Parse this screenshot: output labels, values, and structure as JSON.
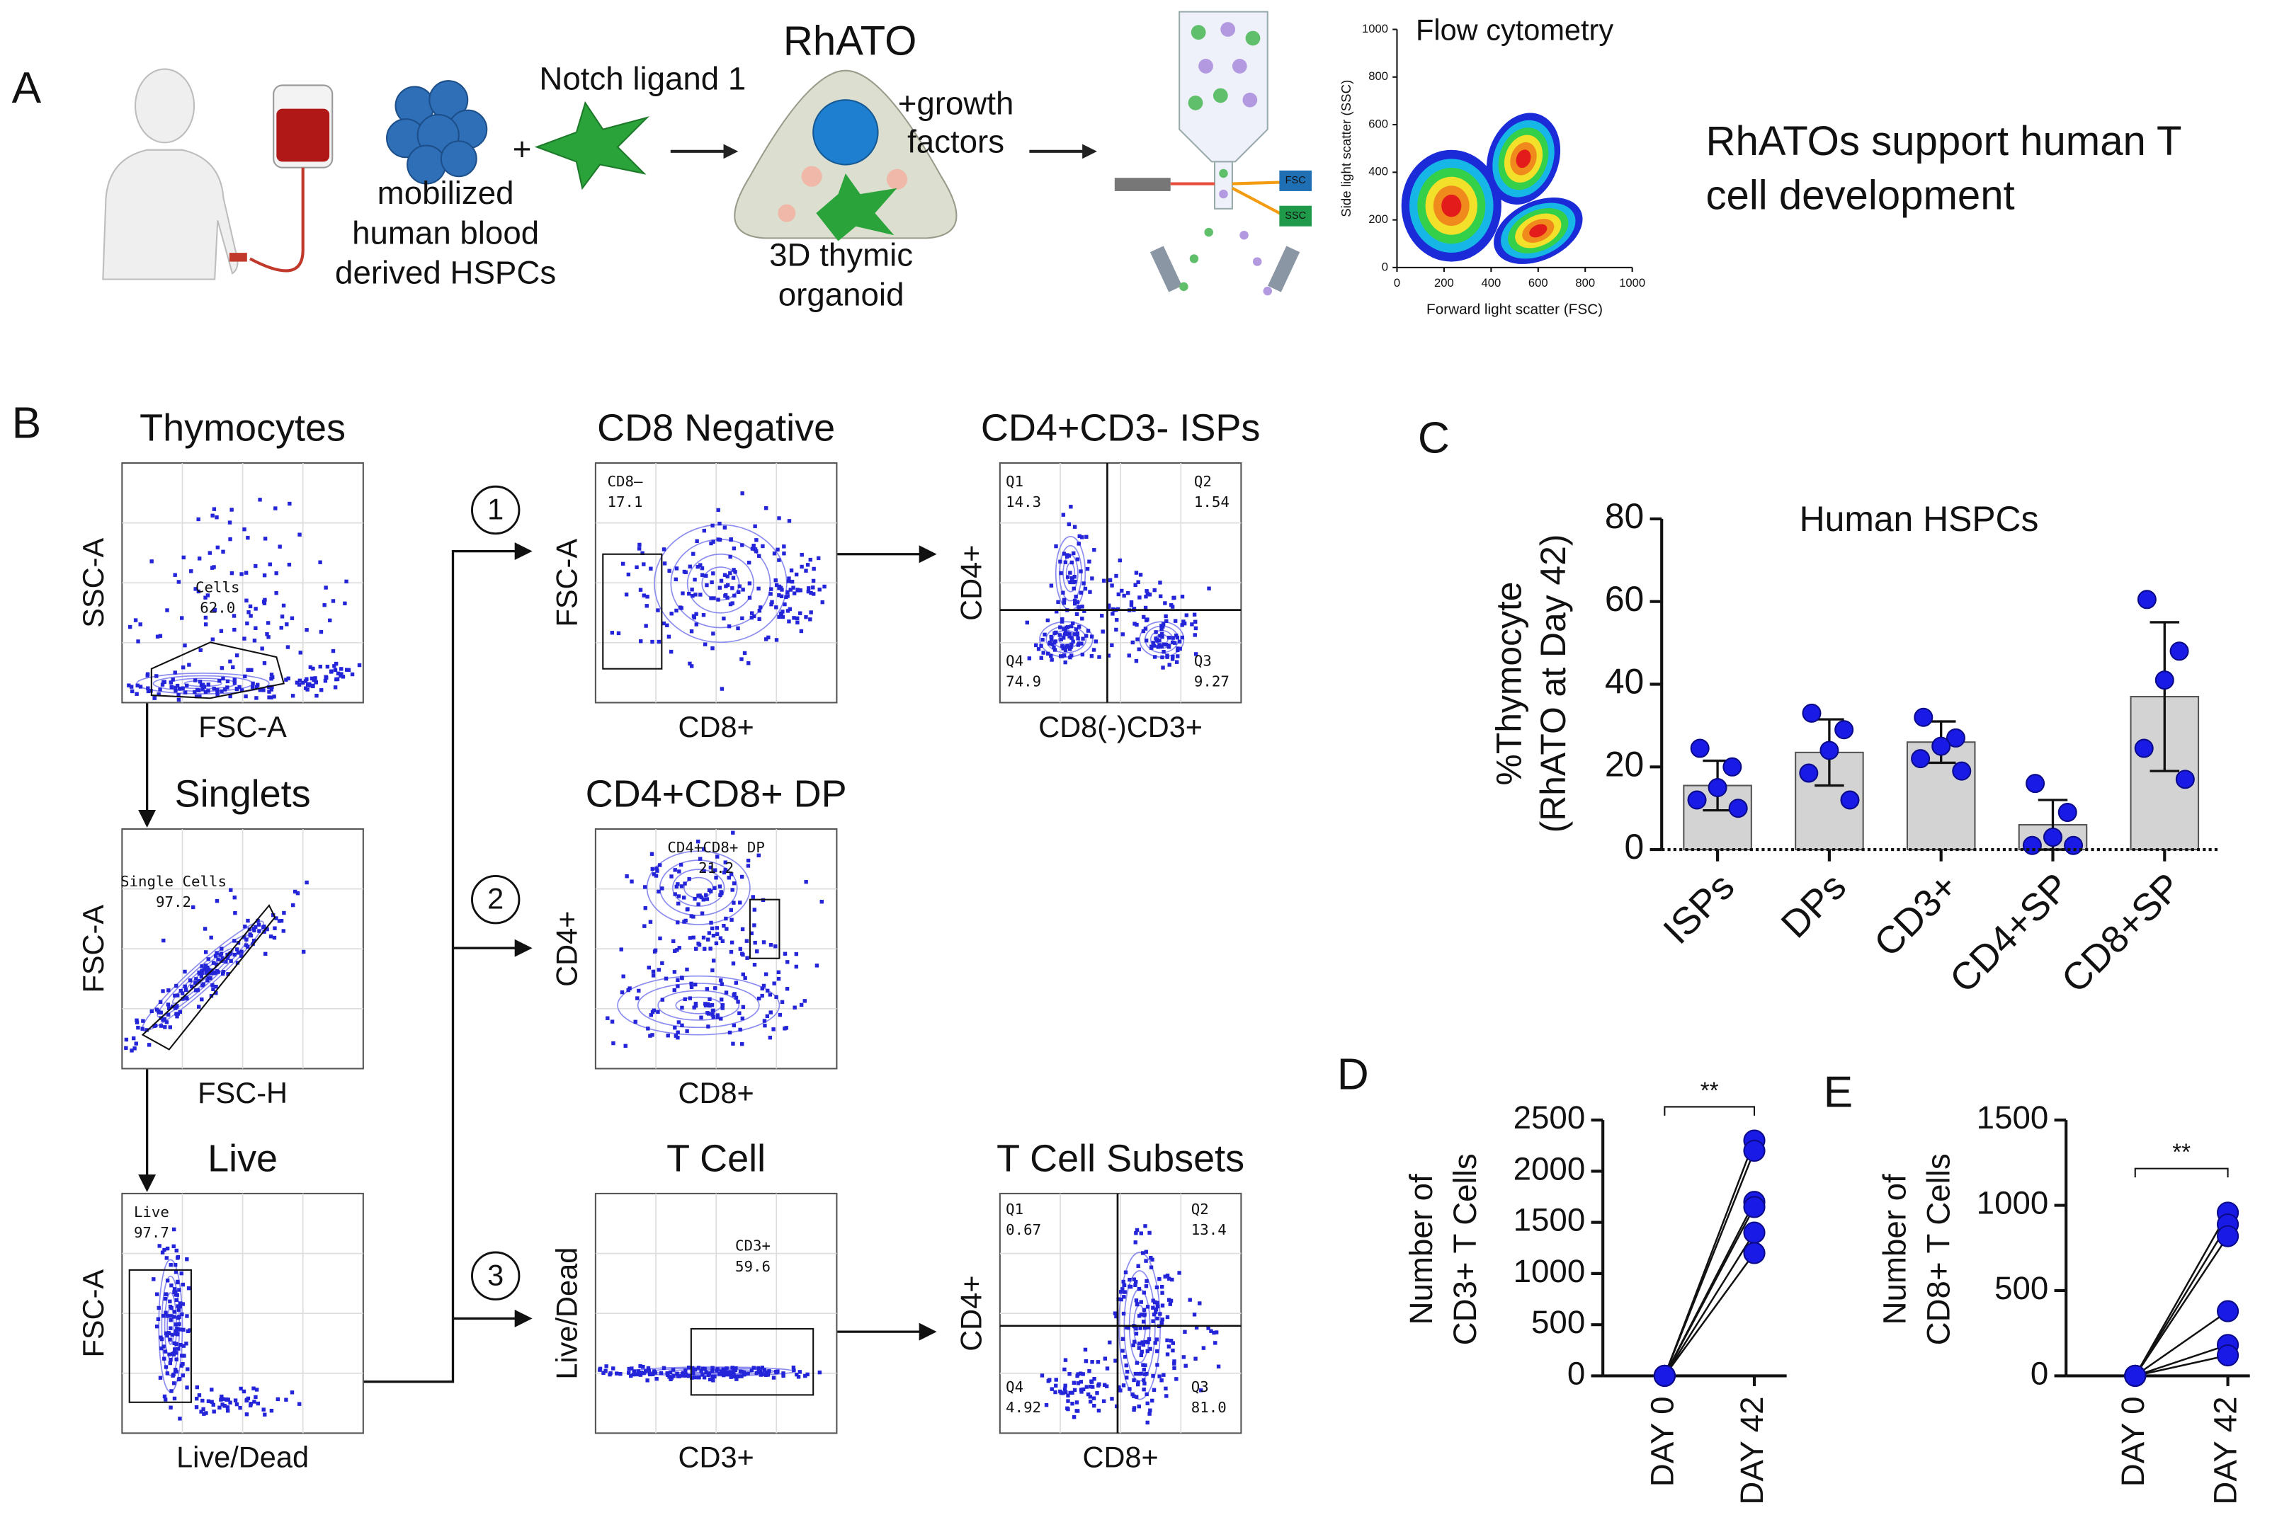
{
  "panel_a": {
    "letter": "A",
    "notch": "Notch ligand 1",
    "plus": "+",
    "hspc": [
      "mobilized",
      "human blood",
      "derived HSPCs"
    ],
    "rhato": "RhATO",
    "growth": [
      "+growth",
      "factors"
    ],
    "organoid": [
      "3D thymic",
      "organoid"
    ],
    "fsc_tag": "FSC",
    "ssc_tag": "SSC",
    "caption": [
      "RhATOs support human T",
      "cell development"
    ]
  },
  "panel_b": {
    "letter": "B",
    "steps": [
      "1",
      "2",
      "3"
    ],
    "plots": [
      {
        "title": "Thymocytes",
        "x_label": "FSC-A",
        "y_label": "SSC-A",
        "gates": [
          {
            "name": "Cells",
            "value": "62.0"
          }
        ]
      },
      {
        "title": "Singlets",
        "x_label": "FSC-H",
        "y_label": "FSC-A",
        "gates": [
          {
            "name": "Single Cells",
            "value": "97.2"
          }
        ]
      },
      {
        "title": "Live",
        "x_label": "Live/Dead",
        "y_label": "FSC-A",
        "gates": [
          {
            "name": "Live",
            "value": "97.7"
          }
        ]
      },
      {
        "title": "CD8 Negative",
        "x_label": "CD8+",
        "y_label": "FSC-A",
        "gates": [
          {
            "name": "CD8–",
            "value": "17.1"
          }
        ]
      },
      {
        "title": "CD4+CD3- ISPs",
        "x_label": "CD8(-)CD3+",
        "y_label": "CD4+",
        "gates": [
          {
            "name": "Q1",
            "value": "14.3"
          },
          {
            "name": "Q2",
            "value": "1.54"
          },
          {
            "name": "Q4",
            "value": "74.9"
          },
          {
            "name": "Q3",
            "value": "9.27"
          }
        ]
      },
      {
        "title": "CD4+CD8+ DP",
        "x_label": "CD8+",
        "y_label": "CD4+",
        "gates": [
          {
            "name": "CD4+CD8+ DP",
            "value": "21.2"
          }
        ]
      },
      {
        "title": "T Cell",
        "x_label": "CD3+",
        "y_label": "Live/Dead",
        "gates": [
          {
            "name": "CD3+",
            "value": "59.6"
          }
        ]
      },
      {
        "title": "T Cell Subsets",
        "x_label": "CD8+",
        "y_label": "CD4+",
        "gates": [
          {
            "name": "Q1",
            "value": "0.67"
          },
          {
            "name": "Q2",
            "value": "13.4"
          },
          {
            "name": "Q4",
            "value": "4.92"
          },
          {
            "name": "Q3",
            "value": "81.0"
          }
        ]
      }
    ]
  },
  "chart_data": [
    {
      "type": "density",
      "title": "Flow cytometry",
      "x_label": "Forward light scatter (FSC)",
      "y_label": "Side light scatter (SSC)",
      "xlim": [
        0,
        1000
      ],
      "ylim": [
        0,
        1000
      ],
      "xticks": [
        0,
        200,
        400,
        600,
        800,
        1000
      ],
      "yticks": [
        0,
        200,
        400,
        600,
        800,
        1000
      ]
    },
    {
      "type": "bar",
      "panel": "C",
      "title": "Human HSPCs",
      "y_label": [
        "%Thymocyte",
        "(RhATO at Day 42)"
      ],
      "categories": [
        "ISPs",
        "DPs",
        "CD3+",
        "CD4+SP",
        "CD8+SP"
      ],
      "values": [
        15.5,
        23.5,
        26,
        6,
        37
      ],
      "errors": [
        6,
        8,
        5,
        6,
        18
      ],
      "points": [
        [
          24.5,
          20,
          15,
          12,
          10
        ],
        [
          33,
          29,
          24,
          18.5,
          12
        ],
        [
          32,
          27,
          25,
          22,
          19
        ],
        [
          16,
          9,
          3,
          1,
          1
        ],
        [
          60.5,
          48,
          41,
          24.5,
          17
        ]
      ],
      "color": "#d3d3d3",
      "point_color": "#1a1ae6",
      "ylim": [
        0,
        80
      ],
      "yticks": [
        0,
        20,
        40,
        60,
        80
      ]
    },
    {
      "type": "paired",
      "panel": "D",
      "annotation": "**",
      "y_label": [
        "Number of",
        "CD3+ T Cells"
      ],
      "categories": [
        "DAY 0",
        "DAY 42"
      ],
      "series": [
        {
          "values": [
            0,
            2300
          ]
        },
        {
          "values": [
            0,
            2200
          ]
        },
        {
          "values": [
            0,
            1700
          ]
        },
        {
          "values": [
            0,
            1650
          ]
        },
        {
          "values": [
            0,
            1400
          ]
        },
        {
          "values": [
            0,
            1200
          ]
        }
      ],
      "color": "#1a1ae6",
      "ylim": [
        0,
        2500
      ],
      "yticks": [
        0,
        500,
        1000,
        1500,
        2000,
        2500
      ]
    },
    {
      "type": "paired",
      "panel": "E",
      "annotation": "**",
      "y_label": [
        "Number of",
        "CD8+ T Cells"
      ],
      "categories": [
        "DAY 0",
        "DAY 42"
      ],
      "series": [
        {
          "values": [
            0,
            957
          ]
        },
        {
          "values": [
            0,
            888
          ]
        },
        {
          "values": [
            0,
            819
          ]
        },
        {
          "values": [
            0,
            379
          ]
        },
        {
          "values": [
            0,
            181
          ]
        },
        {
          "values": [
            0,
            120
          ]
        }
      ],
      "color": "#1a1ae6",
      "ylim": [
        0,
        1500
      ],
      "yticks": [
        0,
        500,
        1000,
        1500
      ]
    }
  ]
}
